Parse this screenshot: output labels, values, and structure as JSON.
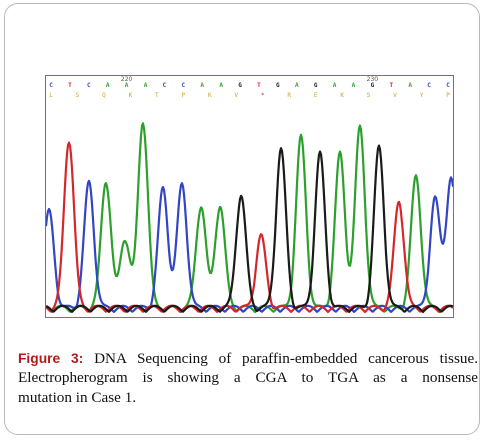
{
  "figure": {
    "label": "Figure 3:",
    "caption_lines": [
      "DNA Sequencing of paraffin-embedded cancerous tissue.",
      "Electropherogram is showing a CGA to TGA as a nonsense",
      "mutation in Case 1."
    ]
  },
  "electropherogram": {
    "base_calls": [
      "C",
      "T",
      "C",
      "A",
      "A",
      "A",
      "C",
      "C",
      "A",
      "A",
      "G",
      "T",
      "G",
      "A",
      "G",
      "A",
      "A",
      "G",
      "T",
      "A",
      "C",
      "C"
    ],
    "position_labels": [
      "220",
      "230"
    ],
    "amino_acids": [
      "L",
      "S",
      "Q",
      "K",
      "T",
      "P",
      "K",
      "V",
      "*",
      "R",
      "E",
      "K",
      "S",
      "V",
      "Y",
      "P"
    ],
    "colors": {
      "A": "#2ca02c",
      "C": "#3245c4",
      "G": "#1a1a1a",
      "T": "#d62728",
      "amino_acid": "#c9a227",
      "stop": "#d62728",
      "border": "#8a5fa8"
    }
  }
}
